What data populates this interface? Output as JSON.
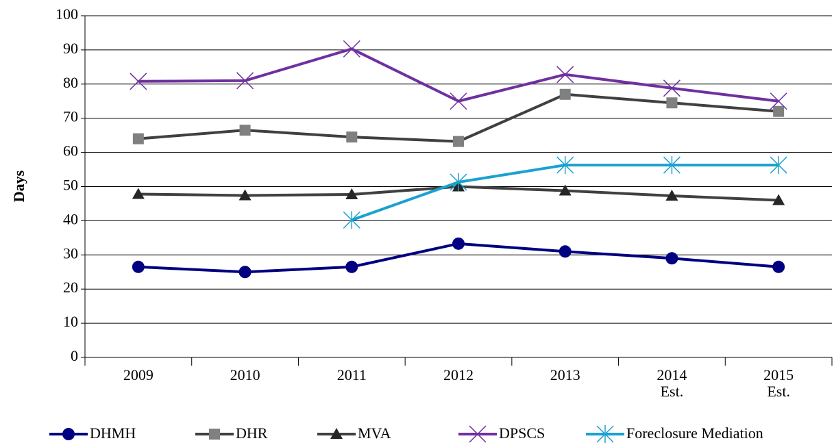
{
  "chart_data": {
    "type": "line",
    "ylabel": "Days",
    "categories": [
      "2009",
      "2010",
      "2011",
      "2012",
      "2013",
      "2014\nEst.",
      "2015\nEst."
    ],
    "ylim": [
      0,
      100
    ],
    "yticks": [
      0,
      10,
      20,
      30,
      40,
      50,
      60,
      70,
      80,
      90,
      100
    ],
    "grid": true,
    "legend": "bottom",
    "series": [
      {
        "name": "DHMH",
        "color": "#000080",
        "marker": "circle",
        "marker_color": "#000080",
        "values": [
          26.5,
          25,
          26.5,
          33.3,
          31,
          29,
          26.5
        ]
      },
      {
        "name": "DHR",
        "color": "#404040",
        "marker": "square",
        "marker_color": "#808080",
        "values": [
          64,
          66.5,
          64.5,
          63.2,
          77,
          74.5,
          72
        ]
      },
      {
        "name": "MVA",
        "color": "#404040",
        "marker": "triangle",
        "marker_color": "#262626",
        "values": [
          47.8,
          47.4,
          47.7,
          50,
          48.8,
          47.3,
          46
        ]
      },
      {
        "name": "DPSCS",
        "color": "#7030a0",
        "marker": "x",
        "marker_color": "#7030a0",
        "values": [
          80.8,
          81,
          90.3,
          75,
          82.8,
          78.8,
          75
        ]
      },
      {
        "name": "Foreclosure Mediation",
        "color": "#1ba1d0",
        "marker": "star",
        "marker_color": "#1ba1d0",
        "values": [
          null,
          null,
          40.2,
          51.3,
          56.3,
          56.3,
          56.3
        ]
      }
    ]
  }
}
